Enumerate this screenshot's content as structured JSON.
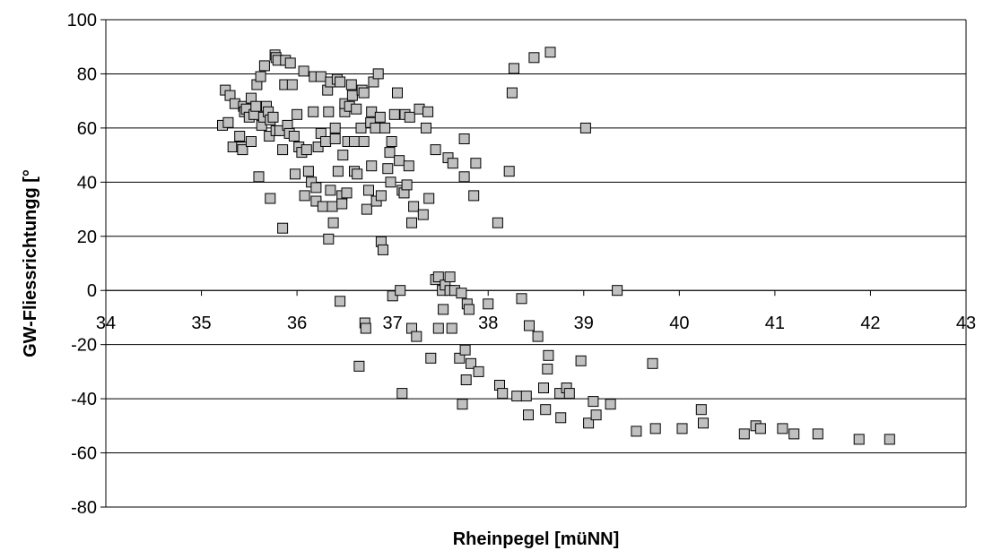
{
  "chart_data": {
    "type": "scatter",
    "xlabel": "Rheinpegel [müNN]",
    "ylabel": "GW-Fliessrichtungg [°",
    "xlim": [
      34,
      43
    ],
    "ylim": [
      -80,
      100
    ],
    "xticks": [
      34,
      35,
      36,
      37,
      38,
      39,
      40,
      41,
      42,
      43
    ],
    "yticks": [
      100,
      80,
      60,
      40,
      20,
      0,
      -20,
      -40,
      -60,
      -80
    ],
    "grid": "horizontal",
    "legend": "none",
    "marker": "square",
    "marker_color": "#c0c0c0",
    "series": [
      {
        "points": [
          [
            35.22,
            61
          ],
          [
            35.25,
            74
          ],
          [
            35.28,
            62
          ],
          [
            35.3,
            72
          ],
          [
            35.33,
            53
          ],
          [
            35.35,
            69
          ],
          [
            35.4,
            57
          ],
          [
            35.42,
            53
          ],
          [
            35.43,
            52
          ],
          [
            35.44,
            68
          ],
          [
            35.45,
            66
          ],
          [
            35.47,
            67
          ],
          [
            35.5,
            64
          ],
          [
            35.52,
            55
          ],
          [
            35.52,
            71
          ],
          [
            35.55,
            65
          ],
          [
            35.57,
            68
          ],
          [
            35.58,
            76
          ],
          [
            35.6,
            42
          ],
          [
            35.62,
            79
          ],
          [
            35.63,
            61
          ],
          [
            35.65,
            64
          ],
          [
            35.66,
            83
          ],
          [
            35.68,
            68
          ],
          [
            35.7,
            66
          ],
          [
            35.71,
            57
          ],
          [
            35.72,
            34
          ],
          [
            35.72,
            63
          ],
          [
            35.75,
            64
          ],
          [
            35.77,
            87
          ],
          [
            35.78,
            86
          ],
          [
            35.78,
            59
          ],
          [
            35.8,
            85
          ],
          [
            35.82,
            59
          ],
          [
            35.85,
            52
          ],
          [
            35.85,
            23
          ],
          [
            35.87,
            76
          ],
          [
            35.88,
            85
          ],
          [
            35.9,
            61
          ],
          [
            35.92,
            58
          ],
          [
            35.93,
            84
          ],
          [
            35.95,
            76
          ],
          [
            35.97,
            57
          ],
          [
            35.98,
            43
          ],
          [
            36.0,
            65
          ],
          [
            36.02,
            53
          ],
          [
            36.05,
            51
          ],
          [
            36.07,
            81
          ],
          [
            36.08,
            35
          ],
          [
            36.1,
            52
          ],
          [
            36.12,
            44
          ],
          [
            36.15,
            40
          ],
          [
            36.17,
            66
          ],
          [
            36.18,
            79
          ],
          [
            36.2,
            38
          ],
          [
            36.2,
            33
          ],
          [
            36.22,
            53
          ],
          [
            36.25,
            79
          ],
          [
            36.25,
            58
          ],
          [
            36.27,
            31
          ],
          [
            36.3,
            55
          ],
          [
            36.32,
            74
          ],
          [
            36.33,
            66
          ],
          [
            36.33,
            19
          ],
          [
            36.35,
            77
          ],
          [
            36.35,
            37
          ],
          [
            36.37,
            31
          ],
          [
            36.38,
            25
          ],
          [
            36.4,
            60
          ],
          [
            36.4,
            56
          ],
          [
            36.42,
            78
          ],
          [
            36.43,
            44
          ],
          [
            36.45,
            77
          ],
          [
            36.45,
            -4
          ],
          [
            36.47,
            35
          ],
          [
            36.47,
            32
          ],
          [
            36.48,
            50
          ],
          [
            36.5,
            66
          ],
          [
            36.5,
            69
          ],
          [
            36.52,
            36
          ],
          [
            36.53,
            55
          ],
          [
            36.55,
            68
          ],
          [
            36.57,
            76
          ],
          [
            36.58,
            72
          ],
          [
            36.6,
            44
          ],
          [
            36.6,
            55
          ],
          [
            36.62,
            67
          ],
          [
            36.63,
            43
          ],
          [
            36.65,
            -28
          ],
          [
            36.67,
            60
          ],
          [
            36.68,
            74
          ],
          [
            36.7,
            55
          ],
          [
            36.7,
            73
          ],
          [
            36.71,
            -12
          ],
          [
            36.72,
            -14
          ],
          [
            36.73,
            30
          ],
          [
            36.75,
            37
          ],
          [
            36.77,
            62
          ],
          [
            36.78,
            66
          ],
          [
            36.78,
            46
          ],
          [
            36.8,
            77
          ],
          [
            36.82,
            60
          ],
          [
            36.83,
            33
          ],
          [
            36.85,
            80
          ],
          [
            36.87,
            64
          ],
          [
            36.88,
            35
          ],
          [
            36.88,
            18
          ],
          [
            36.9,
            15
          ],
          [
            36.92,
            60
          ],
          [
            36.95,
            45
          ],
          [
            36.97,
            51
          ],
          [
            36.98,
            40
          ],
          [
            36.99,
            55
          ],
          [
            37.0,
            -2
          ],
          [
            37.02,
            65
          ],
          [
            37.05,
            73
          ],
          [
            37.07,
            48
          ],
          [
            37.08,
            0
          ],
          [
            37.1,
            37
          ],
          [
            37.1,
            -38
          ],
          [
            37.12,
            36
          ],
          [
            37.13,
            65
          ],
          [
            37.15,
            39
          ],
          [
            37.17,
            46
          ],
          [
            37.18,
            64
          ],
          [
            37.2,
            25
          ],
          [
            37.2,
            -14
          ],
          [
            37.22,
            31
          ],
          [
            37.25,
            -17
          ],
          [
            37.28,
            67
          ],
          [
            37.32,
            28
          ],
          [
            37.35,
            60
          ],
          [
            37.37,
            66
          ],
          [
            37.38,
            34
          ],
          [
            37.4,
            -25
          ],
          [
            37.45,
            52
          ],
          [
            37.45,
            4
          ],
          [
            37.48,
            5
          ],
          [
            37.48,
            -14
          ],
          [
            37.52,
            0
          ],
          [
            37.53,
            -7
          ],
          [
            37.55,
            2
          ],
          [
            37.58,
            49
          ],
          [
            37.6,
            5
          ],
          [
            37.6,
            0
          ],
          [
            37.62,
            -14
          ],
          [
            37.63,
            47
          ],
          [
            37.65,
            0
          ],
          [
            37.7,
            -25
          ],
          [
            37.72,
            -1
          ],
          [
            37.73,
            -42
          ],
          [
            37.75,
            56
          ],
          [
            37.75,
            42
          ],
          [
            37.76,
            -22
          ],
          [
            37.77,
            -33
          ],
          [
            37.78,
            -5
          ],
          [
            37.8,
            -7
          ],
          [
            37.82,
            -27
          ],
          [
            37.85,
            35
          ],
          [
            37.87,
            47
          ],
          [
            37.9,
            -30
          ],
          [
            38.0,
            -5
          ],
          [
            38.1,
            25
          ],
          [
            38.12,
            -35
          ],
          [
            38.15,
            -38
          ],
          [
            38.22,
            44
          ],
          [
            38.25,
            73
          ],
          [
            38.27,
            82
          ],
          [
            38.3,
            -39
          ],
          [
            38.35,
            -3
          ],
          [
            38.4,
            -39
          ],
          [
            38.42,
            -46
          ],
          [
            38.43,
            -13
          ],
          [
            38.48,
            86
          ],
          [
            38.52,
            -17
          ],
          [
            38.58,
            -36
          ],
          [
            38.6,
            -44
          ],
          [
            38.62,
            -29
          ],
          [
            38.63,
            -24
          ],
          [
            38.65,
            88
          ],
          [
            38.75,
            -38
          ],
          [
            38.76,
            -47
          ],
          [
            38.82,
            -36
          ],
          [
            38.85,
            -38
          ],
          [
            38.97,
            -26
          ],
          [
            39.02,
            60
          ],
          [
            39.05,
            -49
          ],
          [
            39.1,
            -41
          ],
          [
            39.13,
            -46
          ],
          [
            39.28,
            -42
          ],
          [
            39.35,
            0
          ],
          [
            39.55,
            -52
          ],
          [
            39.72,
            -27
          ],
          [
            39.75,
            -51
          ],
          [
            40.03,
            -51
          ],
          [
            40.23,
            -44
          ],
          [
            40.25,
            -49
          ],
          [
            40.68,
            -53
          ],
          [
            40.8,
            -50
          ],
          [
            40.85,
            -51
          ],
          [
            41.08,
            -51
          ],
          [
            41.2,
            -53
          ],
          [
            41.45,
            -53
          ],
          [
            41.88,
            -55
          ],
          [
            42.2,
            -55
          ]
        ]
      }
    ]
  }
}
